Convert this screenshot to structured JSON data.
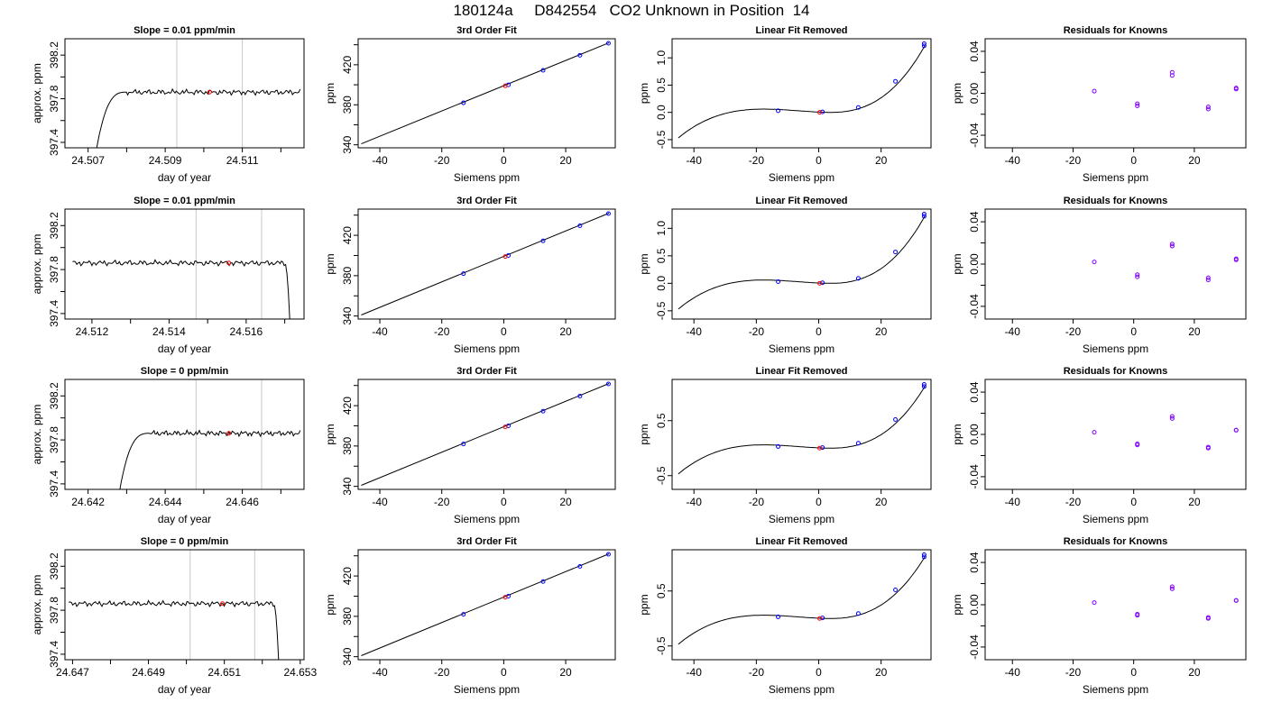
{
  "figure": {
    "title": "180124a     D842554   CO2 Unknown in Position  14"
  },
  "colors": {
    "trace": "#000000",
    "window_lines": "#c8c8c8",
    "mean_marker": "#ff0000",
    "knowns_marker": "#0000ff",
    "residual_marker": "#8000ff",
    "fit_line": "#000000"
  },
  "chart_data": [
    {
      "type": "line",
      "title": "Slope =  0.01  ppm/min",
      "xlabel": "day of year",
      "ylabel": "approx. ppm",
      "xlim": [
        24.5064,
        24.5126
      ],
      "ylim": [
        397.35,
        398.35
      ],
      "xticks": [
        24.507,
        24.508,
        24.509,
        24.51,
        24.511,
        24.512
      ],
      "xtick_labels": [
        "24.507",
        "",
        "24.509",
        "",
        "24.511",
        ""
      ],
      "yticks": [
        397.4,
        397.6,
        397.8,
        398.0,
        398.2
      ],
      "ytick_labels": [
        "397.4",
        "",
        "397.8",
        "",
        "398.2"
      ],
      "window_lines": [
        24.5093,
        24.511
      ],
      "mean_point": [
        24.51015,
        397.86
      ],
      "trace": {
        "start": 24.5072,
        "end": 24.5125,
        "level": 397.86,
        "rise_x": 24.5072,
        "rise_from": 397.3,
        "plateau_x": 24.508,
        "tail": "none"
      }
    },
    {
      "type": "line",
      "title": "3rd Order Fit",
      "xlabel": "Siemens ppm",
      "ylabel": "ppm",
      "xlim": [
        -47,
        36
      ],
      "ylim": [
        337,
        446
      ],
      "xticks": [
        -40,
        -20,
        0,
        20
      ],
      "xtick_labels": [
        "-40",
        "-20",
        "0",
        "20"
      ],
      "yticks": [
        340,
        360,
        380,
        400,
        420,
        440
      ],
      "ytick_labels": [
        "340",
        "",
        "380",
        "",
        "420",
        ""
      ],
      "line": {
        "x": [
          -46,
          34
        ],
        "y": [
          341,
          442
        ]
      },
      "knowns": [
        {
          "x": -13,
          "y": 382
        },
        {
          "x": 1.5,
          "y": 400
        },
        {
          "x": 12.7,
          "y": 414.5
        },
        {
          "x": 24.6,
          "y": 429.5
        },
        {
          "x": 33.8,
          "y": 441.5
        }
      ],
      "unknown": {
        "x": 0.5,
        "y": 399
      }
    },
    {
      "type": "line",
      "title": "Linear Fit Removed",
      "xlabel": "Siemens ppm",
      "ylabel": "ppm",
      "xlim": [
        -47,
        36
      ],
      "ylim": [
        -0.65,
        1.35
      ],
      "xticks": [
        -40,
        -20,
        0,
        20
      ],
      "xtick_labels": [
        "-40",
        "-20",
        "0",
        "20"
      ],
      "yticks": [
        -0.5,
        0.0,
        0.5,
        1.0
      ],
      "ytick_labels": [
        "-0.5",
        "0.0",
        "0.5",
        "1.0"
      ],
      "curve": {
        "x_from": -45,
        "x_to": 34,
        "x_min": -17.6,
        "x_max": 4.1,
        "y_local_max": 0.06,
        "y_local_min": 0.0,
        "y_end": 1.22
      },
      "knowns": [
        {
          "x": -13,
          "y": 0.03
        },
        {
          "x": 1.2,
          "y": 0.01
        },
        {
          "x": 12.7,
          "y": 0.09
        },
        {
          "x": 24.6,
          "y": 0.57
        },
        {
          "x": 33.8,
          "y": 1.22
        },
        {
          "x": 33.8,
          "y": 1.26
        }
      ],
      "unknown": {
        "x": 0.3,
        "y": 0.0
      }
    },
    {
      "type": "scatter",
      "title": "Residuals for Knowns",
      "xlabel": "Siemens ppm",
      "ylabel": "ppm",
      "xlim": [
        -49,
        37
      ],
      "ylim": [
        -0.052,
        0.052
      ],
      "xticks": [
        -40,
        -20,
        0,
        20
      ],
      "xtick_labels": [
        "-40",
        "-20",
        "0",
        "20"
      ],
      "yticks": [
        -0.04,
        -0.02,
        0.0,
        0.02,
        0.04
      ],
      "ytick_labels": [
        "-0.04",
        "",
        "0.00",
        "",
        "0.04"
      ],
      "points": [
        {
          "x": -13,
          "y": 0.002
        },
        {
          "x": 1.2,
          "y": -0.01
        },
        {
          "x": 1.2,
          "y": -0.012
        },
        {
          "x": 12.7,
          "y": 0.017
        },
        {
          "x": 12.7,
          "y": 0.02
        },
        {
          "x": 24.6,
          "y": -0.013
        },
        {
          "x": 24.6,
          "y": -0.015
        },
        {
          "x": 33.8,
          "y": 0.004
        },
        {
          "x": 33.8,
          "y": 0.005
        }
      ]
    },
    {
      "type": "line",
      "title": "Slope =  0.01  ppm/min",
      "xlabel": "day of year",
      "ylabel": "approx. ppm",
      "xlim": [
        24.5113,
        24.5175
      ],
      "ylim": [
        397.35,
        398.35
      ],
      "xticks": [
        24.512,
        24.513,
        24.514,
        24.515,
        24.516,
        24.517
      ],
      "xtick_labels": [
        "24.512",
        "",
        "24.514",
        "",
        "24.516",
        ""
      ],
      "yticks": [
        397.4,
        397.6,
        397.8,
        398.0,
        398.2
      ],
      "ytick_labels": [
        "397.4",
        "",
        "397.8",
        "",
        "398.2"
      ],
      "window_lines": [
        24.5147,
        24.5164
      ],
      "mean_point": [
        24.51555,
        397.86
      ],
      "trace": {
        "start": 24.5115,
        "end": 24.5172,
        "level": 397.86,
        "rise_x": null,
        "rise_from": null,
        "plateau_x": null,
        "tail": "drop",
        "tail_x": 24.517
      }
    },
    {
      "type": "line",
      "title": "3rd Order Fit",
      "xlabel": "Siemens ppm",
      "ylabel": "ppm",
      "xlim": [
        -47,
        36
      ],
      "ylim": [
        337,
        446
      ],
      "xticks": [
        -40,
        -20,
        0,
        20
      ],
      "xtick_labels": [
        "-40",
        "-20",
        "0",
        "20"
      ],
      "yticks": [
        340,
        360,
        380,
        400,
        420,
        440
      ],
      "ytick_labels": [
        "340",
        "",
        "380",
        "",
        "420",
        ""
      ],
      "line": {
        "x": [
          -46,
          34
        ],
        "y": [
          341,
          442
        ]
      },
      "knowns": [
        {
          "x": -13,
          "y": 382
        },
        {
          "x": 1.5,
          "y": 400
        },
        {
          "x": 12.7,
          "y": 414.5
        },
        {
          "x": 24.6,
          "y": 429.5
        },
        {
          "x": 33.8,
          "y": 441.5
        }
      ],
      "unknown": {
        "x": 0.5,
        "y": 399
      }
    },
    {
      "type": "line",
      "title": "Linear Fit Removed",
      "xlabel": "Siemens ppm",
      "ylabel": "ppm",
      "xlim": [
        -47,
        36
      ],
      "ylim": [
        -0.65,
        1.35
      ],
      "xticks": [
        -40,
        -20,
        0,
        20
      ],
      "xtick_labels": [
        "-40",
        "-20",
        "0",
        "20"
      ],
      "yticks": [
        -0.5,
        0.0,
        0.5,
        1.0
      ],
      "ytick_labels": [
        "-0.5",
        "0.0",
        "0.5",
        "1.0"
      ],
      "curve": {
        "x_from": -45,
        "x_to": 34,
        "x_min": -17.6,
        "x_max": 4.1,
        "y_local_max": 0.06,
        "y_local_min": 0.0,
        "y_end": 1.22
      },
      "knowns": [
        {
          "x": -13,
          "y": 0.03
        },
        {
          "x": 1.2,
          "y": 0.01
        },
        {
          "x": 12.7,
          "y": 0.09
        },
        {
          "x": 24.6,
          "y": 0.57
        },
        {
          "x": 33.8,
          "y": 1.22
        },
        {
          "x": 33.8,
          "y": 1.26
        }
      ],
      "unknown": {
        "x": 0.3,
        "y": 0.0
      }
    },
    {
      "type": "scatter",
      "title": "Residuals for Knowns",
      "xlabel": "Siemens ppm",
      "ylabel": "ppm",
      "xlim": [
        -49,
        37
      ],
      "ylim": [
        -0.052,
        0.052
      ],
      "xticks": [
        -40,
        -20,
        0,
        20
      ],
      "xtick_labels": [
        "-40",
        "-20",
        "0",
        "20"
      ],
      "yticks": [
        -0.04,
        -0.02,
        0.0,
        0.02,
        0.04
      ],
      "ytick_labels": [
        "-0.04",
        "",
        "0.00",
        "",
        "0.04"
      ],
      "points": [
        {
          "x": -13,
          "y": 0.002
        },
        {
          "x": 1.2,
          "y": -0.01
        },
        {
          "x": 1.2,
          "y": -0.012
        },
        {
          "x": 12.7,
          "y": 0.017
        },
        {
          "x": 12.7,
          "y": 0.019
        },
        {
          "x": 24.6,
          "y": -0.013
        },
        {
          "x": 24.6,
          "y": -0.015
        },
        {
          "x": 33.8,
          "y": 0.004
        },
        {
          "x": 33.8,
          "y": 0.005
        }
      ]
    },
    {
      "type": "line",
      "title": "Slope =  0  ppm/min",
      "xlabel": "day of year",
      "ylabel": "approx. ppm",
      "xlim": [
        24.6414,
        24.6476
      ],
      "ylim": [
        397.35,
        398.35
      ],
      "xticks": [
        24.642,
        24.643,
        24.644,
        24.645,
        24.646,
        24.647
      ],
      "xtick_labels": [
        "24.642",
        "",
        "24.644",
        "",
        "24.646",
        ""
      ],
      "yticks": [
        397.4,
        397.6,
        397.8,
        398.0,
        398.2
      ],
      "ytick_labels": [
        "397.4",
        "",
        "397.8",
        "",
        "398.2"
      ],
      "window_lines": [
        24.6448,
        24.6465
      ],
      "mean_point": [
        24.64565,
        397.86
      ],
      "trace": {
        "start": 24.6428,
        "end": 24.6475,
        "level": 397.86,
        "rise_x": 24.6428,
        "rise_from": 397.3,
        "plateau_x": 24.6436,
        "tail": "none"
      }
    },
    {
      "type": "line",
      "title": "3rd Order Fit",
      "xlabel": "Siemens ppm",
      "ylabel": "ppm",
      "xlim": [
        -47,
        36
      ],
      "ylim": [
        337,
        446
      ],
      "xticks": [
        -40,
        -20,
        0,
        20
      ],
      "xtick_labels": [
        "-40",
        "-20",
        "0",
        "20"
      ],
      "yticks": [
        340,
        360,
        380,
        400,
        420,
        440
      ],
      "ytick_labels": [
        "340",
        "",
        "380",
        "",
        "420",
        ""
      ],
      "line": {
        "x": [
          -46,
          34
        ],
        "y": [
          341,
          442
        ]
      },
      "knowns": [
        {
          "x": -13,
          "y": 382
        },
        {
          "x": 1.5,
          "y": 400
        },
        {
          "x": 12.7,
          "y": 414.5
        },
        {
          "x": 24.6,
          "y": 429.5
        },
        {
          "x": 33.8,
          "y": 441.5
        }
      ],
      "unknown": {
        "x": 0.5,
        "y": 399
      }
    },
    {
      "type": "line",
      "title": "Linear Fit Removed",
      "xlabel": "Siemens ppm",
      "ylabel": "ppm",
      "xlim": [
        -47,
        36
      ],
      "ylim": [
        -0.75,
        1.25
      ],
      "xticks": [
        -40,
        -20,
        0,
        20
      ],
      "xtick_labels": [
        "-40",
        "-20",
        "0",
        "20"
      ],
      "yticks": [
        -0.5,
        0.5
      ],
      "ytick_labels": [
        "-0.5",
        "0.5"
      ],
      "curve": {
        "x_from": -45,
        "x_to": 34,
        "x_min": -17.6,
        "x_max": 4.1,
        "y_local_max": 0.06,
        "y_local_min": 0.0,
        "y_end": 1.12
      },
      "knowns": [
        {
          "x": -13,
          "y": 0.03
        },
        {
          "x": 1.2,
          "y": 0.01
        },
        {
          "x": 12.7,
          "y": 0.09
        },
        {
          "x": 24.6,
          "y": 0.52
        },
        {
          "x": 33.8,
          "y": 1.12
        },
        {
          "x": 33.8,
          "y": 1.16
        }
      ],
      "unknown": {
        "x": 0.3,
        "y": 0.0
      }
    },
    {
      "type": "scatter",
      "title": "Residuals for Knowns",
      "xlabel": "Siemens ppm",
      "ylabel": "ppm",
      "xlim": [
        -49,
        37
      ],
      "ylim": [
        -0.052,
        0.052
      ],
      "xticks": [
        -40,
        -20,
        0,
        20
      ],
      "xtick_labels": [
        "-40",
        "-20",
        "0",
        "20"
      ],
      "yticks": [
        -0.04,
        -0.02,
        0.0,
        0.02,
        0.04
      ],
      "ytick_labels": [
        "-0.04",
        "",
        "0.00",
        "",
        "0.04"
      ],
      "points": [
        {
          "x": -13,
          "y": 0.002
        },
        {
          "x": 1.2,
          "y": -0.009
        },
        {
          "x": 1.2,
          "y": -0.01
        },
        {
          "x": 12.7,
          "y": 0.015
        },
        {
          "x": 12.7,
          "y": 0.017
        },
        {
          "x": 24.6,
          "y": -0.012
        },
        {
          "x": 24.6,
          "y": -0.013
        },
        {
          "x": 33.8,
          "y": 0.004
        },
        {
          "x": 33.8,
          "y": 0.004
        }
      ]
    },
    {
      "type": "line",
      "title": "Slope =  0  ppm/min",
      "xlabel": "day of year",
      "ylabel": "approx. ppm",
      "xlim": [
        24.6468,
        24.6531
      ],
      "ylim": [
        397.35,
        398.35
      ],
      "xticks": [
        24.647,
        24.648,
        24.649,
        24.65,
        24.651,
        24.652,
        24.653
      ],
      "xtick_labels": [
        "24.647",
        "",
        "24.649",
        "",
        "24.651",
        "",
        "24.653"
      ],
      "yticks": [
        397.4,
        397.6,
        397.8,
        398.0,
        398.2
      ],
      "ytick_labels": [
        "397.4",
        "",
        "397.8",
        "",
        "398.2"
      ],
      "window_lines": [
        24.6501,
        24.6518
      ],
      "mean_point": [
        24.65095,
        397.86
      ],
      "trace": {
        "start": 24.6469,
        "end": 24.6525,
        "level": 397.86,
        "rise_x": null,
        "rise_from": null,
        "plateau_x": null,
        "tail": "drop",
        "tail_x": 24.6523
      }
    },
    {
      "type": "line",
      "title": "3rd Order Fit",
      "xlabel": "Siemens ppm",
      "ylabel": "ppm",
      "xlim": [
        -47,
        36
      ],
      "ylim": [
        337,
        446
      ],
      "xticks": [
        -40,
        -20,
        0,
        20
      ],
      "xtick_labels": [
        "-40",
        "-20",
        "0",
        "20"
      ],
      "yticks": [
        340,
        360,
        380,
        400,
        420,
        440
      ],
      "ytick_labels": [
        "340",
        "",
        "380",
        "",
        "420",
        ""
      ],
      "line": {
        "x": [
          -46,
          34
        ],
        "y": [
          341,
          442
        ]
      },
      "knowns": [
        {
          "x": -13,
          "y": 382
        },
        {
          "x": 1.5,
          "y": 400
        },
        {
          "x": 12.7,
          "y": 414.5
        },
        {
          "x": 24.6,
          "y": 429.5
        },
        {
          "x": 33.8,
          "y": 441.5
        }
      ],
      "unknown": {
        "x": 0.5,
        "y": 399
      }
    },
    {
      "type": "line",
      "title": "Linear Fit Removed",
      "xlabel": "Siemens ppm",
      "ylabel": "ppm",
      "xlim": [
        -47,
        36
      ],
      "ylim": [
        -0.75,
        1.25
      ],
      "xticks": [
        -40,
        -20,
        0,
        20
      ],
      "xtick_labels": [
        "-40",
        "-20",
        "0",
        "20"
      ],
      "yticks": [
        -0.5,
        0.5
      ],
      "ytick_labels": [
        "-0.5",
        "0.5"
      ],
      "curve": {
        "x_from": -45,
        "x_to": 34,
        "x_min": -17.6,
        "x_max": 4.1,
        "y_local_max": 0.06,
        "y_local_min": 0.0,
        "y_end": 1.12
      },
      "knowns": [
        {
          "x": -13,
          "y": 0.03
        },
        {
          "x": 1.2,
          "y": 0.01
        },
        {
          "x": 12.7,
          "y": 0.09
        },
        {
          "x": 24.6,
          "y": 0.52
        },
        {
          "x": 33.8,
          "y": 1.12
        },
        {
          "x": 33.8,
          "y": 1.16
        }
      ],
      "unknown": {
        "x": 0.3,
        "y": 0.0
      }
    },
    {
      "type": "scatter",
      "title": "Residuals for Knowns",
      "xlabel": "Siemens ppm",
      "ylabel": "ppm",
      "xlim": [
        -49,
        37
      ],
      "ylim": [
        -0.052,
        0.052
      ],
      "xticks": [
        -40,
        -20,
        0,
        20
      ],
      "xtick_labels": [
        "-40",
        "-20",
        "0",
        "20"
      ],
      "yticks": [
        -0.04,
        -0.02,
        0.0,
        0.02,
        0.04
      ],
      "ytick_labels": [
        "-0.04",
        "",
        "0.00",
        "",
        "0.04"
      ],
      "points": [
        {
          "x": -13,
          "y": 0.002
        },
        {
          "x": 1.2,
          "y": -0.009
        },
        {
          "x": 1.2,
          "y": -0.01
        },
        {
          "x": 12.7,
          "y": 0.015
        },
        {
          "x": 12.7,
          "y": 0.017
        },
        {
          "x": 24.6,
          "y": -0.012
        },
        {
          "x": 24.6,
          "y": -0.013
        },
        {
          "x": 33.8,
          "y": 0.004
        },
        {
          "x": 33.8,
          "y": 0.004
        }
      ]
    }
  ]
}
